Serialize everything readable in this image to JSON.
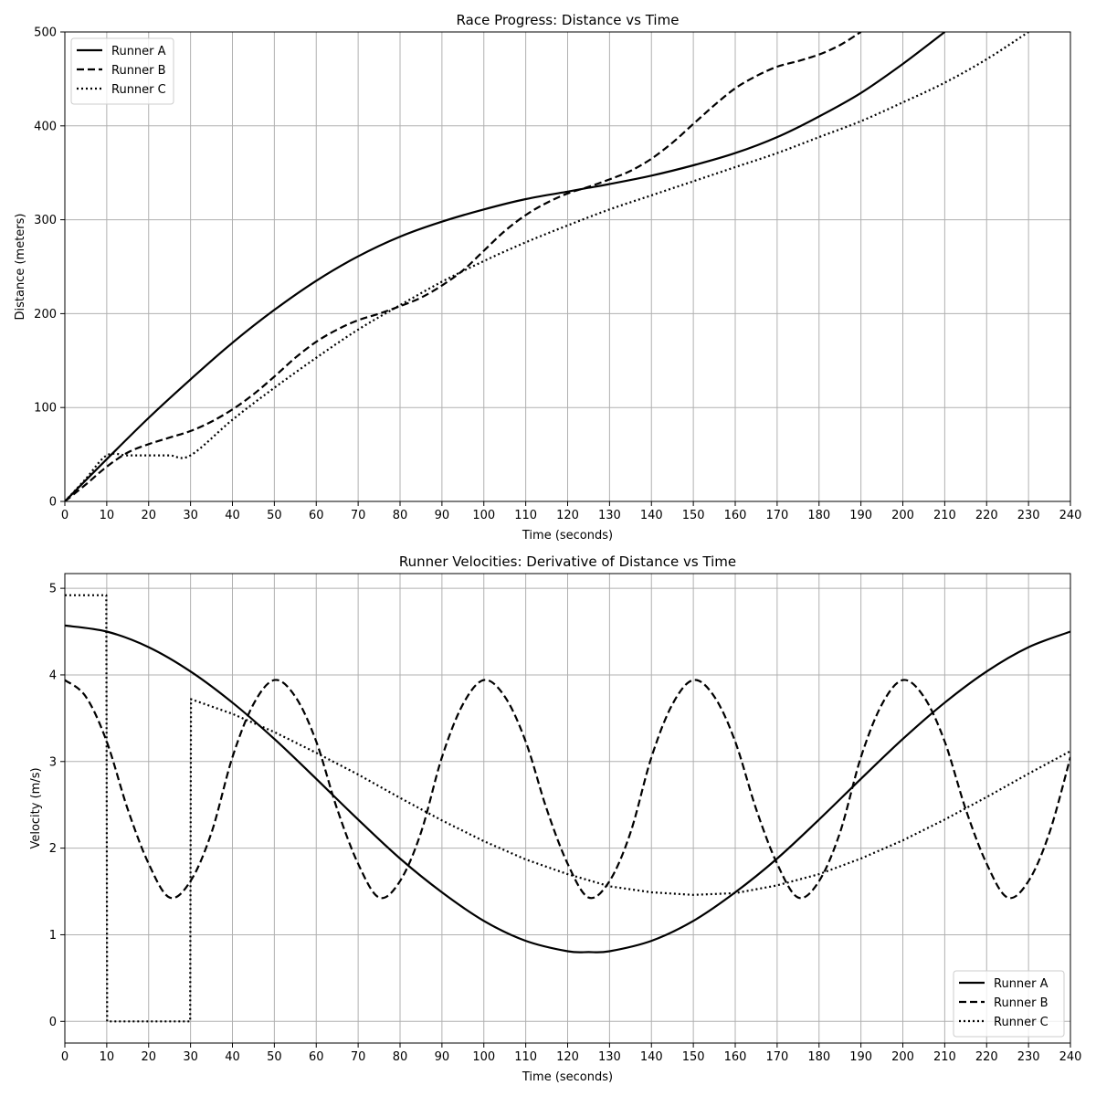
{
  "chart_data": [
    {
      "type": "line",
      "title": "Race Progress: Distance vs Time",
      "xlabel": "Time (seconds)",
      "ylabel": "Distance (meters)",
      "xlim": [
        0,
        240
      ],
      "ylim": [
        0,
        500
      ],
      "xticks": [
        0,
        10,
        20,
        30,
        40,
        50,
        60,
        70,
        80,
        90,
        100,
        110,
        120,
        130,
        140,
        150,
        160,
        170,
        180,
        190,
        200,
        210,
        220,
        230,
        240
      ],
      "yticks": [
        0,
        100,
        200,
        300,
        400,
        500
      ],
      "grid": true,
      "legend_position": "upper-left",
      "series": [
        {
          "name": "Runner A",
          "style": "solid",
          "x": [
            0,
            10,
            20,
            30,
            40,
            50,
            60,
            70,
            80,
            90,
            100,
            110,
            120,
            125,
            130,
            140,
            150,
            160,
            170,
            180,
            190,
            200,
            210
          ],
          "y": [
            0,
            45,
            89,
            130,
            169,
            204,
            235,
            261,
            282,
            298,
            311,
            322,
            330,
            334,
            338,
            347,
            358,
            371,
            388,
            410,
            435,
            466,
            500
          ]
        },
        {
          "name": "Runner B",
          "style": "dashed",
          "x": [
            0,
            5,
            10,
            15,
            20,
            25,
            30,
            35,
            40,
            45,
            50,
            55,
            60,
            65,
            70,
            75,
            80,
            85,
            90,
            95,
            100,
            105,
            110,
            115,
            120,
            125,
            130,
            135,
            140,
            145,
            150,
            155,
            160,
            165,
            170,
            175,
            180,
            185,
            190
          ],
          "y": [
            0,
            18,
            37,
            52,
            61,
            68,
            75,
            85,
            98,
            114,
            133,
            153,
            170,
            183,
            193,
            200,
            208,
            217,
            230,
            246,
            267,
            288,
            305,
            318,
            328,
            335,
            343,
            352,
            365,
            382,
            402,
            422,
            440,
            453,
            463,
            469,
            476,
            486,
            500
          ]
        },
        {
          "name": "Runner C",
          "style": "dotted",
          "x": [
            0,
            5,
            10,
            15,
            20,
            25,
            30,
            40,
            50,
            60,
            70,
            80,
            90,
            100,
            110,
            120,
            130,
            140,
            150,
            160,
            170,
            180,
            190,
            200,
            210,
            220,
            230
          ],
          "y": [
            0,
            24,
            49,
            49,
            49,
            49,
            49,
            87,
            121,
            153,
            183,
            209,
            234,
            256,
            276,
            294,
            311,
            326,
            341,
            356,
            371,
            388,
            405,
            425,
            446,
            471,
            500
          ]
        }
      ]
    },
    {
      "type": "line",
      "title": "Runner Velocities: Derivative of Distance vs Time",
      "xlabel": "Time (seconds)",
      "ylabel": "Velocity (m/s)",
      "xlim": [
        0,
        240
      ],
      "ylim": [
        -0.25,
        5.17
      ],
      "xticks": [
        0,
        10,
        20,
        30,
        40,
        50,
        60,
        70,
        80,
        90,
        100,
        110,
        120,
        130,
        140,
        150,
        160,
        170,
        180,
        190,
        200,
        210,
        220,
        230,
        240
      ],
      "yticks": [
        0,
        1,
        2,
        3,
        4,
        5
      ],
      "grid": true,
      "legend_position": "lower-right",
      "series": [
        {
          "name": "Runner A",
          "style": "solid",
          "x": [
            0,
            10,
            20,
            30,
            40,
            50,
            60,
            70,
            80,
            90,
            100,
            110,
            120,
            125,
            130,
            140,
            150,
            160,
            170,
            180,
            190,
            200,
            210,
            220,
            230,
            240
          ],
          "y": [
            4.57,
            4.5,
            4.32,
            4.04,
            3.68,
            3.26,
            2.8,
            2.33,
            1.88,
            1.49,
            1.16,
            0.93,
            0.81,
            0.8,
            0.81,
            0.93,
            1.16,
            1.49,
            1.88,
            2.33,
            2.8,
            3.26,
            3.68,
            4.04,
            4.32,
            4.5
          ]
        },
        {
          "name": "Runner B",
          "style": "dashed",
          "x": [
            0,
            5,
            10,
            15,
            20,
            25,
            30,
            35,
            40,
            45,
            50,
            55,
            60,
            65,
            70,
            75,
            80,
            85,
            90,
            95,
            100,
            105,
            110,
            115,
            120,
            125,
            130,
            135,
            140,
            145,
            150,
            155,
            160,
            165,
            170,
            175,
            180,
            185,
            190,
            195,
            200,
            205,
            210,
            215,
            220,
            225,
            230,
            235,
            240
          ],
          "y": [
            3.94,
            3.75,
            3.23,
            2.45,
            1.82,
            1.43,
            1.62,
            2.18,
            3.05,
            3.66,
            3.94,
            3.75,
            3.23,
            2.45,
            1.82,
            1.43,
            1.62,
            2.18,
            3.05,
            3.66,
            3.94,
            3.75,
            3.23,
            2.45,
            1.82,
            1.43,
            1.62,
            2.18,
            3.05,
            3.66,
            3.94,
            3.75,
            3.23,
            2.45,
            1.82,
            1.43,
            1.62,
            2.18,
            3.05,
            3.66,
            3.94,
            3.75,
            3.23,
            2.45,
            1.82,
            1.43,
            1.62,
            2.18,
            3.05
          ]
        },
        {
          "name": "Runner C",
          "style": "dotted",
          "x": [
            0,
            5,
            9.9,
            10.1,
            15,
            20,
            25,
            29.9,
            30.1,
            40,
            50,
            60,
            70,
            80,
            90,
            100,
            110,
            120,
            130,
            140,
            150,
            160,
            170,
            180,
            190,
            200,
            210,
            220,
            230,
            240
          ],
          "y": [
            4.92,
            4.92,
            4.92,
            0,
            0,
            0,
            0,
            0,
            3.72,
            3.55,
            3.34,
            3.1,
            2.85,
            2.58,
            2.32,
            2.08,
            1.87,
            1.7,
            1.56,
            1.49,
            1.46,
            1.48,
            1.57,
            1.7,
            1.88,
            2.09,
            2.33,
            2.59,
            2.86,
            3.12
          ]
        }
      ]
    }
  ]
}
